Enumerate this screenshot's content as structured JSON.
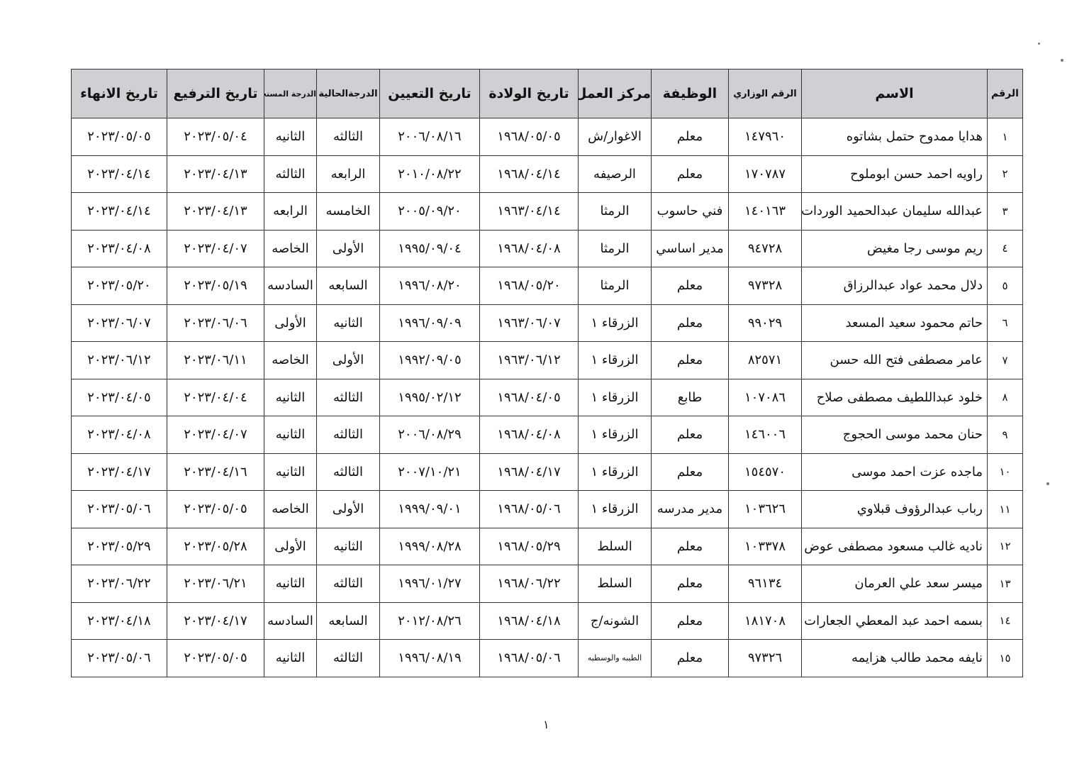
{
  "table": {
    "headers": [
      "الرقم",
      "الاسم",
      "الرقم الوزاري",
      "الوظيفة",
      "مركز العمل",
      "تاريخ الولادة",
      "تاريخ التعيين",
      "الدرجةالحالية",
      "الدرجة المستحقة",
      "تاريخ الترفيع",
      "تاريخ الانهاء"
    ],
    "rows": [
      [
        "١",
        "هدايا ممدوح حتمل بشاتوه",
        "١٤٧٩٦٠",
        "معلم",
        "الاغوار/ش",
        "١٩٦٨/٠٥/٠٥",
        "٢٠٠٦/٠٨/١٦",
        "الثالثه",
        "الثانيه",
        "٢٠٢٣/٠٥/٠٤",
        "٢٠٢٣/٠٥/٠٥"
      ],
      [
        "٢",
        "راويه احمد حسن ابوملوح",
        "١٧٠٧٨٧",
        "معلم",
        "الرصيفه",
        "١٩٦٨/٠٤/١٤",
        "٢٠١٠/٠٨/٢٢",
        "الرابعه",
        "الثالثه",
        "٢٠٢٣/٠٤/١٣",
        "٢٠٢٣/٠٤/١٤"
      ],
      [
        "٣",
        "عبدالله سليمان عبدالحميد الوردات",
        "١٤٠١٦٣",
        "فني حاسوب",
        "الرمثا",
        "١٩٦٣/٠٤/١٤",
        "٢٠٠٥/٠٩/٢٠",
        "الخامسه",
        "الرابعه",
        "٢٠٢٣/٠٤/١٣",
        "٢٠٢٣/٠٤/١٤"
      ],
      [
        "٤",
        "ريم موسى رجا مغيض",
        "٩٤٧٢٨",
        "مدير اساسي",
        "الرمثا",
        "١٩٦٨/٠٤/٠٨",
        "١٩٩٥/٠٩/٠٤",
        "الأولى",
        "الخاصه",
        "٢٠٢٣/٠٤/٠٧",
        "٢٠٢٣/٠٤/٠٨"
      ],
      [
        "٥",
        "دلال محمد عواد عبدالرزاق",
        "٩٧٣٢٨",
        "معلم",
        "الرمثا",
        "١٩٦٨/٠٥/٢٠",
        "١٩٩٦/٠٨/٢٠",
        "السابعه",
        "السادسه",
        "٢٠٢٣/٠٥/١٩",
        "٢٠٢٣/٠٥/٢٠"
      ],
      [
        "٦",
        "حاتم محمود سعيد المسعد",
        "٩٩٠٢٩",
        "معلم",
        "الزرقاء ١",
        "١٩٦٣/٠٦/٠٧",
        "١٩٩٦/٠٩/٠٩",
        "الثانيه",
        "الأولى",
        "٢٠٢٣/٠٦/٠٦",
        "٢٠٢٣/٠٦/٠٧"
      ],
      [
        "٧",
        "عامر مصطفى فتح الله حسن",
        "٨٢٥٧١",
        "معلم",
        "الزرقاء ١",
        "١٩٦٣/٠٦/١٢",
        "١٩٩٢/٠٩/٠٥",
        "الأولى",
        "الخاصه",
        "٢٠٢٣/٠٦/١١",
        "٢٠٢٣/٠٦/١٢"
      ],
      [
        "٨",
        "خلود عبداللطيف مصطفى صلاح",
        "١٠٧٠٨٦",
        "طابع",
        "الزرقاء ١",
        "١٩٦٨/٠٤/٠٥",
        "١٩٩٥/٠٢/١٢",
        "الثالثه",
        "الثانيه",
        "٢٠٢٣/٠٤/٠٤",
        "٢٠٢٣/٠٤/٠٥"
      ],
      [
        "٩",
        "حنان محمد موسى الحجوج",
        "١٤٦٠٠٦",
        "معلم",
        "الزرقاء ١",
        "١٩٦٨/٠٤/٠٨",
        "٢٠٠٦/٠٨/٢٩",
        "الثالثه",
        "الثانيه",
        "٢٠٢٣/٠٤/٠٧",
        "٢٠٢٣/٠٤/٠٨"
      ],
      [
        "١٠",
        "ماجده عزت احمد موسى",
        "١٥٤٥٧٠",
        "معلم",
        "الزرقاء ١",
        "١٩٦٨/٠٤/١٧",
        "٢٠٠٧/١٠/٢١",
        "الثالثه",
        "الثانيه",
        "٢٠٢٣/٠٤/١٦",
        "٢٠٢٣/٠٤/١٧"
      ],
      [
        "١١",
        "رباب عبدالرؤوف قبلاوي",
        "١٠٣٦٢٦",
        "مدير مدرسه",
        "الزرقاء ١",
        "١٩٦٨/٠٥/٠٦",
        "١٩٩٩/٠٩/٠١",
        "الأولى",
        "الخاصه",
        "٢٠٢٣/٠٥/٠٥",
        "٢٠٢٣/٠٥/٠٦"
      ],
      [
        "١٢",
        "ناديه غالب مسعود مصطفى عوض",
        "١٠٣٣٧٨",
        "معلم",
        "السلط",
        "١٩٦٨/٠٥/٢٩",
        "١٩٩٩/٠٨/٢٨",
        "الثانيه",
        "الأولى",
        "٢٠٢٣/٠٥/٢٨",
        "٢٠٢٣/٠٥/٢٩"
      ],
      [
        "١٣",
        "ميسر سعد علي العرمان",
        "٩٦١٣٤",
        "معلم",
        "السلط",
        "١٩٦٨/٠٦/٢٢",
        "١٩٩٦/٠١/٢٧",
        "الثالثه",
        "الثانيه",
        "٢٠٢٣/٠٦/٢١",
        "٢٠٢٣/٠٦/٢٢"
      ],
      [
        "١٤",
        "بسمه احمد عبد المعطي الجعارات",
        "١٨١٧٠٨",
        "معلم",
        "الشونه/ج",
        "١٩٦٨/٠٤/١٨",
        "٢٠١٢/٠٨/٢٦",
        "السابعه",
        "السادسه",
        "٢٠٢٣/٠٤/١٧",
        "٢٠٢٣/٠٤/١٨"
      ],
      [
        "١٥",
        "نايفه محمد طالب هزايمه",
        "٩٧٣٢٦",
        "معلم",
        "الطيبه والوسطيه",
        "١٩٦٨/٠٥/٠٦",
        "١٩٩٦/٠٨/١٩",
        "الثالثه",
        "الثانيه",
        "٢٠٢٣/٠٥/٠٥",
        "٢٠٢٣/٠٥/٠٦"
      ]
    ]
  },
  "page_number": "١"
}
